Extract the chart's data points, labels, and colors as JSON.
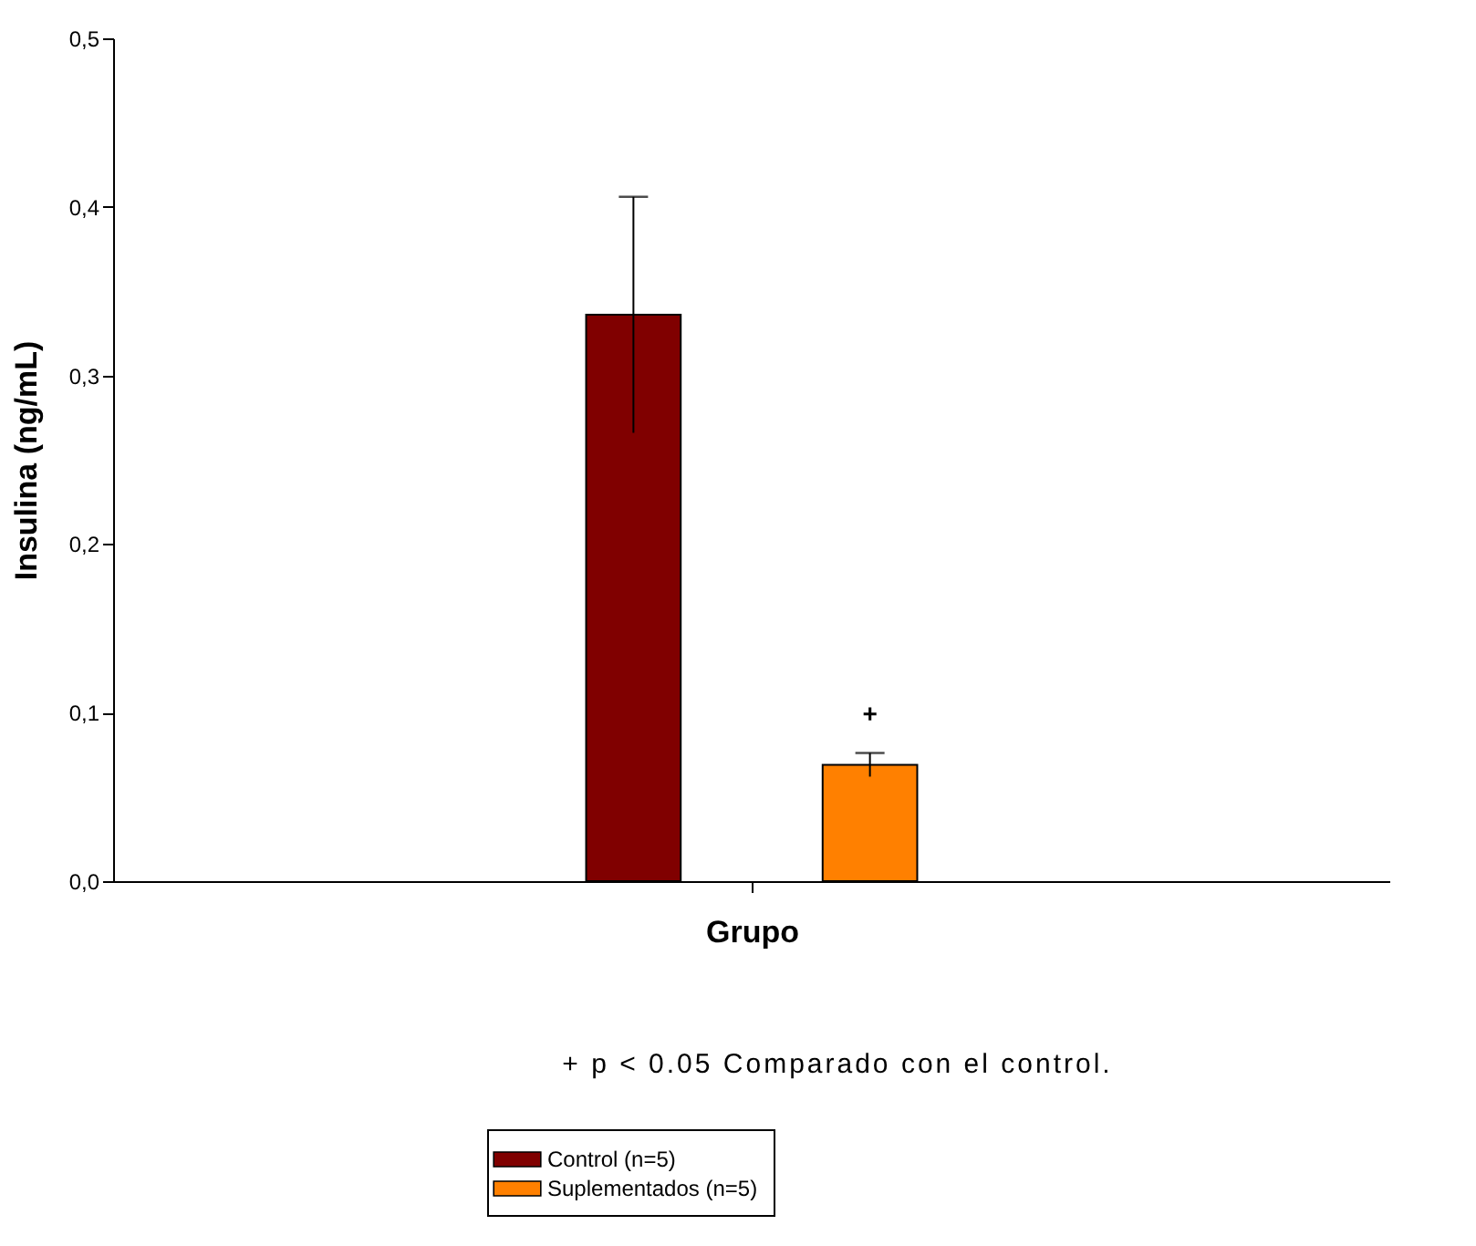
{
  "chart_data": {
    "type": "bar",
    "xlabel": "Grupo",
    "ylabel": "Insulina (ng/mL)",
    "categories": [
      null
    ],
    "series": [
      {
        "name": "Control (n=5)",
        "color": "#800000",
        "values": [
          0.336
        ],
        "errors": [
          0.07
        ]
      },
      {
        "name": "Suplementados (n=5)",
        "color": "#ff8000",
        "values": [
          0.069
        ],
        "errors": [
          0.007
        ]
      }
    ],
    "ylim": [
      0,
      0.5
    ],
    "yticks": [
      {
        "value": 0,
        "label": "0,0"
      },
      {
        "value": 0.1,
        "label": "0,1"
      },
      {
        "value": 0.2,
        "label": "0,2"
      },
      {
        "value": 0.3,
        "label": "0,3"
      },
      {
        "value": 0.4,
        "label": "0,4"
      },
      {
        "value": 0.5,
        "label": "0,5"
      }
    ],
    "grid": false,
    "legend": "bottom",
    "annotations": [
      "+",
      "+ p < 0.05 Comparado con el control."
    ]
  }
}
